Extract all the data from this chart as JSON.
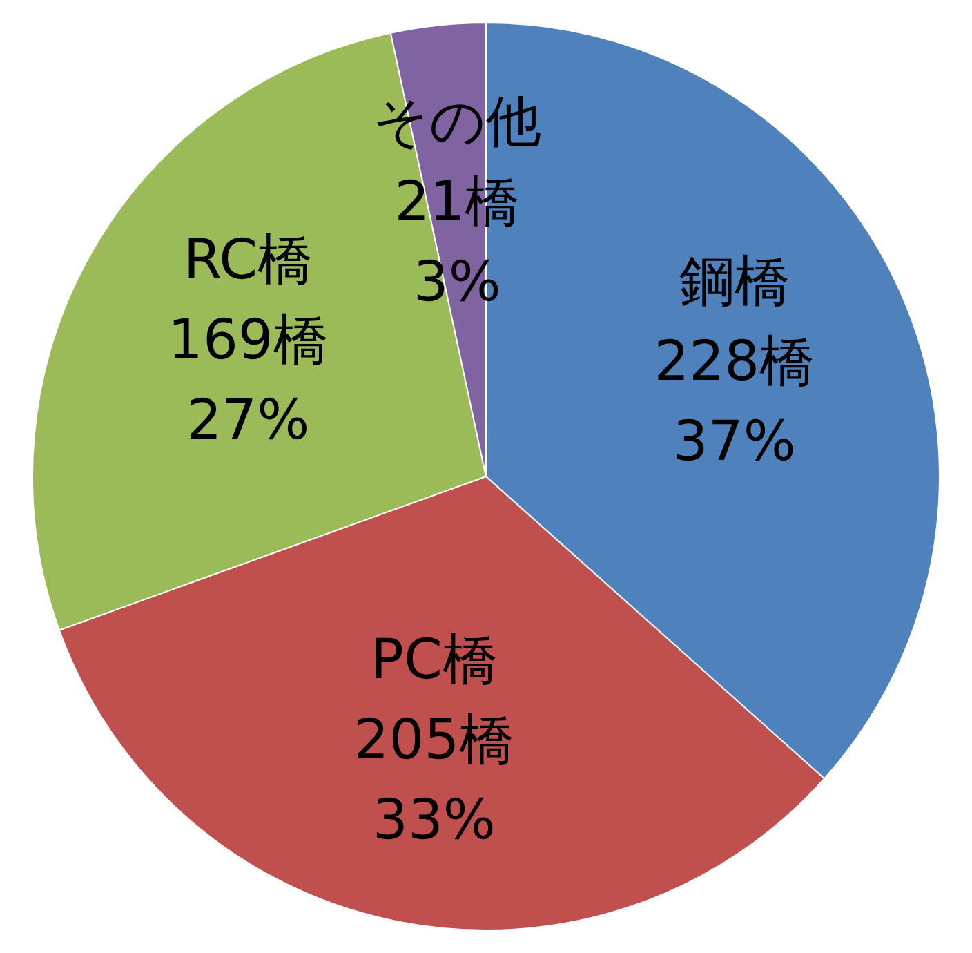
{
  "chart_data": {
    "type": "pie",
    "categories": [
      "鋼橋",
      "PC橋",
      "RC橋",
      "その他"
    ],
    "values": [
      228,
      205,
      169,
      21
    ],
    "value_labels": [
      "228橋\n37%",
      "205橋\n33%",
      "169橋\n27%",
      "21橋\n3%"
    ],
    "colors": [
      "#4f81bd",
      "#c0504d",
      "#9bbb59",
      "#8064a2"
    ],
    "legend": false
  }
}
